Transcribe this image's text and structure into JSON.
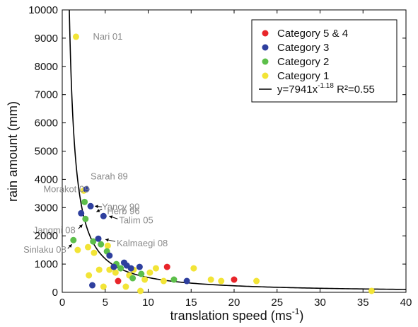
{
  "chart_data": {
    "type": "scatter",
    "xlabel": "translation speed (ms",
    "xlabel_sup": "-1",
    "xlabel_close": ")",
    "ylabel": "rain amount (mm)",
    "xlim": [
      0,
      40
    ],
    "ylim": [
      0,
      10000
    ],
    "x_ticks": [
      "0",
      "5",
      "10",
      "15",
      "20",
      "25",
      "30",
      "35",
      "40"
    ],
    "y_ticks": [
      "0",
      "1000",
      "2000",
      "3000",
      "4000",
      "5000",
      "6000",
      "7000",
      "8000",
      "9000",
      "10000"
    ],
    "grid": false,
    "legend_position": "top-right",
    "series": [
      {
        "name": "Category 5 & 4",
        "color": "#e8252a",
        "points": [
          [
            6.5,
            400
          ],
          [
            12.2,
            900
          ],
          [
            20,
            450
          ]
        ]
      },
      {
        "name": "Category 3",
        "color": "#2e3f9e",
        "points": [
          [
            2.8,
            3650
          ],
          [
            2.2,
            2800
          ],
          [
            3.3,
            3050
          ],
          [
            4.8,
            2700
          ],
          [
            4.2,
            1900
          ],
          [
            5.5,
            1300
          ],
          [
            6,
            900
          ],
          [
            7.2,
            1050
          ],
          [
            7.5,
            950
          ],
          [
            8,
            850
          ],
          [
            9,
            900
          ],
          [
            3.5,
            250
          ],
          [
            14.5,
            400
          ]
        ]
      },
      {
        "name": "Category 2",
        "color": "#5cbf4a",
        "points": [
          [
            1.3,
            1850
          ],
          [
            2.6,
            3200
          ],
          [
            2.7,
            2600
          ],
          [
            3.6,
            1800
          ],
          [
            4.5,
            1700
          ],
          [
            5.2,
            1450
          ],
          [
            6.3,
            1000
          ],
          [
            6.8,
            850
          ],
          [
            8.2,
            500
          ],
          [
            9.2,
            650
          ],
          [
            13,
            450
          ]
        ]
      },
      {
        "name": "Category 1",
        "color": "#f2e436",
        "points": [
          [
            1.6,
            9050
          ],
          [
            2.5,
            3600
          ],
          [
            1.8,
            1500
          ],
          [
            3,
            1600
          ],
          [
            3.7,
            1400
          ],
          [
            3.1,
            600
          ],
          [
            4.3,
            800
          ],
          [
            4.8,
            200
          ],
          [
            5.3,
            1650
          ],
          [
            5.5,
            800
          ],
          [
            6.2,
            700
          ],
          [
            7.4,
            200
          ],
          [
            7.8,
            600
          ],
          [
            8.3,
            800
          ],
          [
            9.1,
            50
          ],
          [
            9.6,
            450
          ],
          [
            10.2,
            700
          ],
          [
            10.9,
            850
          ],
          [
            11.8,
            400
          ],
          [
            15.3,
            850
          ],
          [
            17.3,
            450
          ],
          [
            18.5,
            400
          ],
          [
            22.6,
            400
          ],
          [
            36,
            50
          ]
        ]
      }
    ],
    "fit": {
      "label_prefix": "y=7941x",
      "label_exponent": "-1.18",
      "label_r2": " R²=0.55",
      "a": 7941,
      "b": -1.18,
      "color": "#000000"
    },
    "annotations": [
      {
        "text": "Nari 01",
        "x": 1.6,
        "y": 9050
      },
      {
        "text": "Sarah 89",
        "x": 2.8,
        "y": 3650
      },
      {
        "text": "Morakot 09",
        "x": 2.5,
        "y": 3600
      },
      {
        "text": "Yancy 90",
        "x": 3.3,
        "y": 3050
      },
      {
        "text": "Herb 96",
        "x": 4.8,
        "y": 2700
      },
      {
        "text": "Jangmi 08",
        "x": 2.2,
        "y": 2800
      },
      {
        "text": "Talim 05",
        "x": 4.8,
        "y": 2700
      },
      {
        "text": "Kalmaegi 08",
        "x": 4.2,
        "y": 1900
      },
      {
        "text": "Sinlaku 08",
        "x": 1.3,
        "y": 1850
      }
    ]
  }
}
